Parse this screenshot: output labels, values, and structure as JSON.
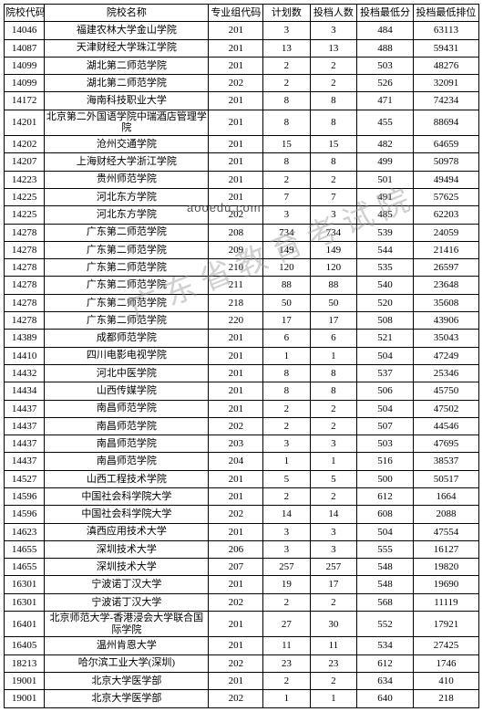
{
  "columns": [
    "院校代码",
    "院校名称",
    "专业组代码",
    "计划数",
    "投档人数",
    "投档最低分",
    "投档最低排位"
  ],
  "watermark_main": "广东省教育考试院",
  "watermark_small": "aooedu.com",
  "rows": [
    [
      "14046",
      "福建农林大学金山学院",
      "201",
      "3",
      "3",
      "484",
      "63113"
    ],
    [
      "14087",
      "天津财经大学珠江学院",
      "201",
      "13",
      "13",
      "488",
      "59431"
    ],
    [
      "14099",
      "湖北第二师范学院",
      "201",
      "2",
      "2",
      "503",
      "48276"
    ],
    [
      "14099",
      "湖北第二师范学院",
      "202",
      "2",
      "2",
      "526",
      "32091"
    ],
    [
      "14172",
      "海南科技职业大学",
      "201",
      "8",
      "8",
      "471",
      "74234"
    ],
    [
      "14201",
      "北京第二外国语学院中瑞酒店管理学院",
      "201",
      "8",
      "8",
      "455",
      "88694"
    ],
    [
      "14202",
      "沧州交通学院",
      "201",
      "15",
      "15",
      "482",
      "64659"
    ],
    [
      "14207",
      "上海财经大学浙江学院",
      "201",
      "8",
      "8",
      "499",
      "50978"
    ],
    [
      "14223",
      "贵州师范学院",
      "201",
      "2",
      "2",
      "501",
      "49494"
    ],
    [
      "14225",
      "河北东方学院",
      "201",
      "7",
      "7",
      "491",
      "57625"
    ],
    [
      "14225",
      "河北东方学院",
      "202",
      "3",
      "3",
      "485",
      "62203"
    ],
    [
      "14278",
      "广东第二师范学院",
      "208",
      "734",
      "734",
      "539",
      "24059"
    ],
    [
      "14278",
      "广东第二师范学院",
      "209",
      "149",
      "149",
      "544",
      "21416"
    ],
    [
      "14278",
      "广东第二师范学院",
      "210",
      "120",
      "120",
      "535",
      "26597"
    ],
    [
      "14278",
      "广东第二师范学院",
      "211",
      "88",
      "88",
      "540",
      "23648"
    ],
    [
      "14278",
      "广东第二师范学院",
      "218",
      "50",
      "50",
      "520",
      "35608"
    ],
    [
      "14278",
      "广东第二师范学院",
      "220",
      "17",
      "17",
      "508",
      "43906"
    ],
    [
      "14389",
      "成都师范学院",
      "201",
      "6",
      "6",
      "521",
      "35043"
    ],
    [
      "14410",
      "四川电影电视学院",
      "201",
      "1",
      "1",
      "504",
      "47249"
    ],
    [
      "14432",
      "河北中医学院",
      "201",
      "8",
      "8",
      "537",
      "25346"
    ],
    [
      "14434",
      "山西传媒学院",
      "201",
      "8",
      "8",
      "506",
      "45750"
    ],
    [
      "14437",
      "南昌师范学院",
      "201",
      "2",
      "2",
      "504",
      "47502"
    ],
    [
      "14437",
      "南昌师范学院",
      "202",
      "2",
      "2",
      "507",
      "44546"
    ],
    [
      "14437",
      "南昌师范学院",
      "203",
      "3",
      "3",
      "503",
      "47695"
    ],
    [
      "14437",
      "南昌师范学院",
      "204",
      "1",
      "1",
      "516",
      "38537"
    ],
    [
      "14527",
      "山西工程技术学院",
      "201",
      "5",
      "5",
      "500",
      "50517"
    ],
    [
      "14596",
      "中国社会科学院大学",
      "201",
      "2",
      "2",
      "612",
      "1664"
    ],
    [
      "14596",
      "中国社会科学院大学",
      "202",
      "14",
      "14",
      "608",
      "2088"
    ],
    [
      "14623",
      "滇西应用技术大学",
      "201",
      "3",
      "3",
      "504",
      "47554"
    ],
    [
      "14655",
      "深圳技术大学",
      "206",
      "3",
      "3",
      "555",
      "16127"
    ],
    [
      "14655",
      "深圳技术大学",
      "207",
      "257",
      "257",
      "548",
      "19820"
    ],
    [
      "16301",
      "宁波诺丁汉大学",
      "201",
      "19",
      "17",
      "548",
      "19690"
    ],
    [
      "16301",
      "宁波诺丁汉大学",
      "202",
      "2",
      "2",
      "568",
      "11119"
    ],
    [
      "16401",
      "北京师范大学-香港浸会大学联合国际学院",
      "201",
      "27",
      "30",
      "552",
      "17921"
    ],
    [
      "16405",
      "温州肯恩大学",
      "201",
      "11",
      "11",
      "534",
      "27425"
    ],
    [
      "18213",
      "哈尔滨工业大学(深圳)",
      "202",
      "23",
      "23",
      "612",
      "1746"
    ],
    [
      "19001",
      "北京大学医学部",
      "201",
      "2",
      "2",
      "634",
      "410"
    ],
    [
      "19001",
      "北京大学医学部",
      "202",
      "1",
      "1",
      "640",
      "218"
    ]
  ]
}
